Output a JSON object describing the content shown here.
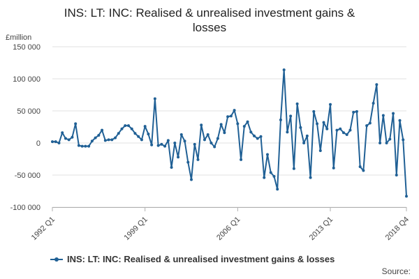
{
  "chart_data": {
    "type": "line",
    "title": "INS: LT: INC: Realised & unrealised investment gains & losses",
    "title_lines": [
      "INS: LT: INC: Realised & unrealised investment gains &",
      "losses"
    ],
    "ylabel": "£million",
    "xlabel": "",
    "ylim": [
      -100000,
      150000
    ],
    "y_ticks": [
      {
        "value": 150000,
        "label": "150 000"
      },
      {
        "value": 100000,
        "label": "100 000"
      },
      {
        "value": 50000,
        "label": "50 000"
      },
      {
        "value": 0,
        "label": "0"
      },
      {
        "value": -50000,
        "label": "-50 000"
      },
      {
        "value": -100000,
        "label": "-100 000"
      }
    ],
    "x_ticks": [
      {
        "index": 0,
        "label": "1992 Q1"
      },
      {
        "index": 28,
        "label": "1999 Q1"
      },
      {
        "index": 56,
        "label": "2006 Q1"
      },
      {
        "index": 84,
        "label": "2013 Q1"
      },
      {
        "index": 107,
        "label": "2018 Q4"
      }
    ],
    "start_period": "1992 Q1",
    "end_period": "2018 Q4",
    "grid": true,
    "legend_position": "bottom",
    "series": [
      {
        "name": "INS: LT: INC: Realised & unrealised investment gains & losses",
        "color": "#206095",
        "values": [
          2000,
          2000,
          0,
          16000,
          7000,
          5000,
          9000,
          30000,
          -4000,
          -5000,
          -5000,
          -5000,
          3000,
          8000,
          12000,
          20000,
          4000,
          5000,
          5000,
          8000,
          15000,
          22000,
          27000,
          27000,
          22000,
          15000,
          10000,
          5000,
          26000,
          14000,
          -3000,
          69000,
          -4000,
          -2000,
          -5000,
          4000,
          -38000,
          0,
          -22000,
          13000,
          3000,
          -30000,
          -57000,
          -2000,
          -26000,
          28000,
          5000,
          13000,
          0,
          -6000,
          7000,
          29000,
          16000,
          41000,
          42000,
          51000,
          30000,
          -26000,
          26000,
          33000,
          17000,
          11000,
          7000,
          10000,
          -54000,
          -18000,
          -46000,
          -52000,
          -72000,
          36000,
          114000,
          17000,
          42000,
          -40000,
          61000,
          24000,
          0,
          11000,
          -54000,
          49000,
          30000,
          -12000,
          32000,
          22000,
          60000,
          -39000,
          20000,
          22000,
          16000,
          13000,
          20000,
          48000,
          49000,
          -37000,
          -43000,
          27000,
          31000,
          62000,
          91000,
          0,
          43000,
          0,
          6000,
          46000,
          -50000,
          35000,
          5000,
          -83000
        ]
      }
    ]
  },
  "legend": {
    "label": "INS: LT: INC: Realised & unrealised investment gains & losses"
  },
  "source": {
    "label": "Source:"
  }
}
